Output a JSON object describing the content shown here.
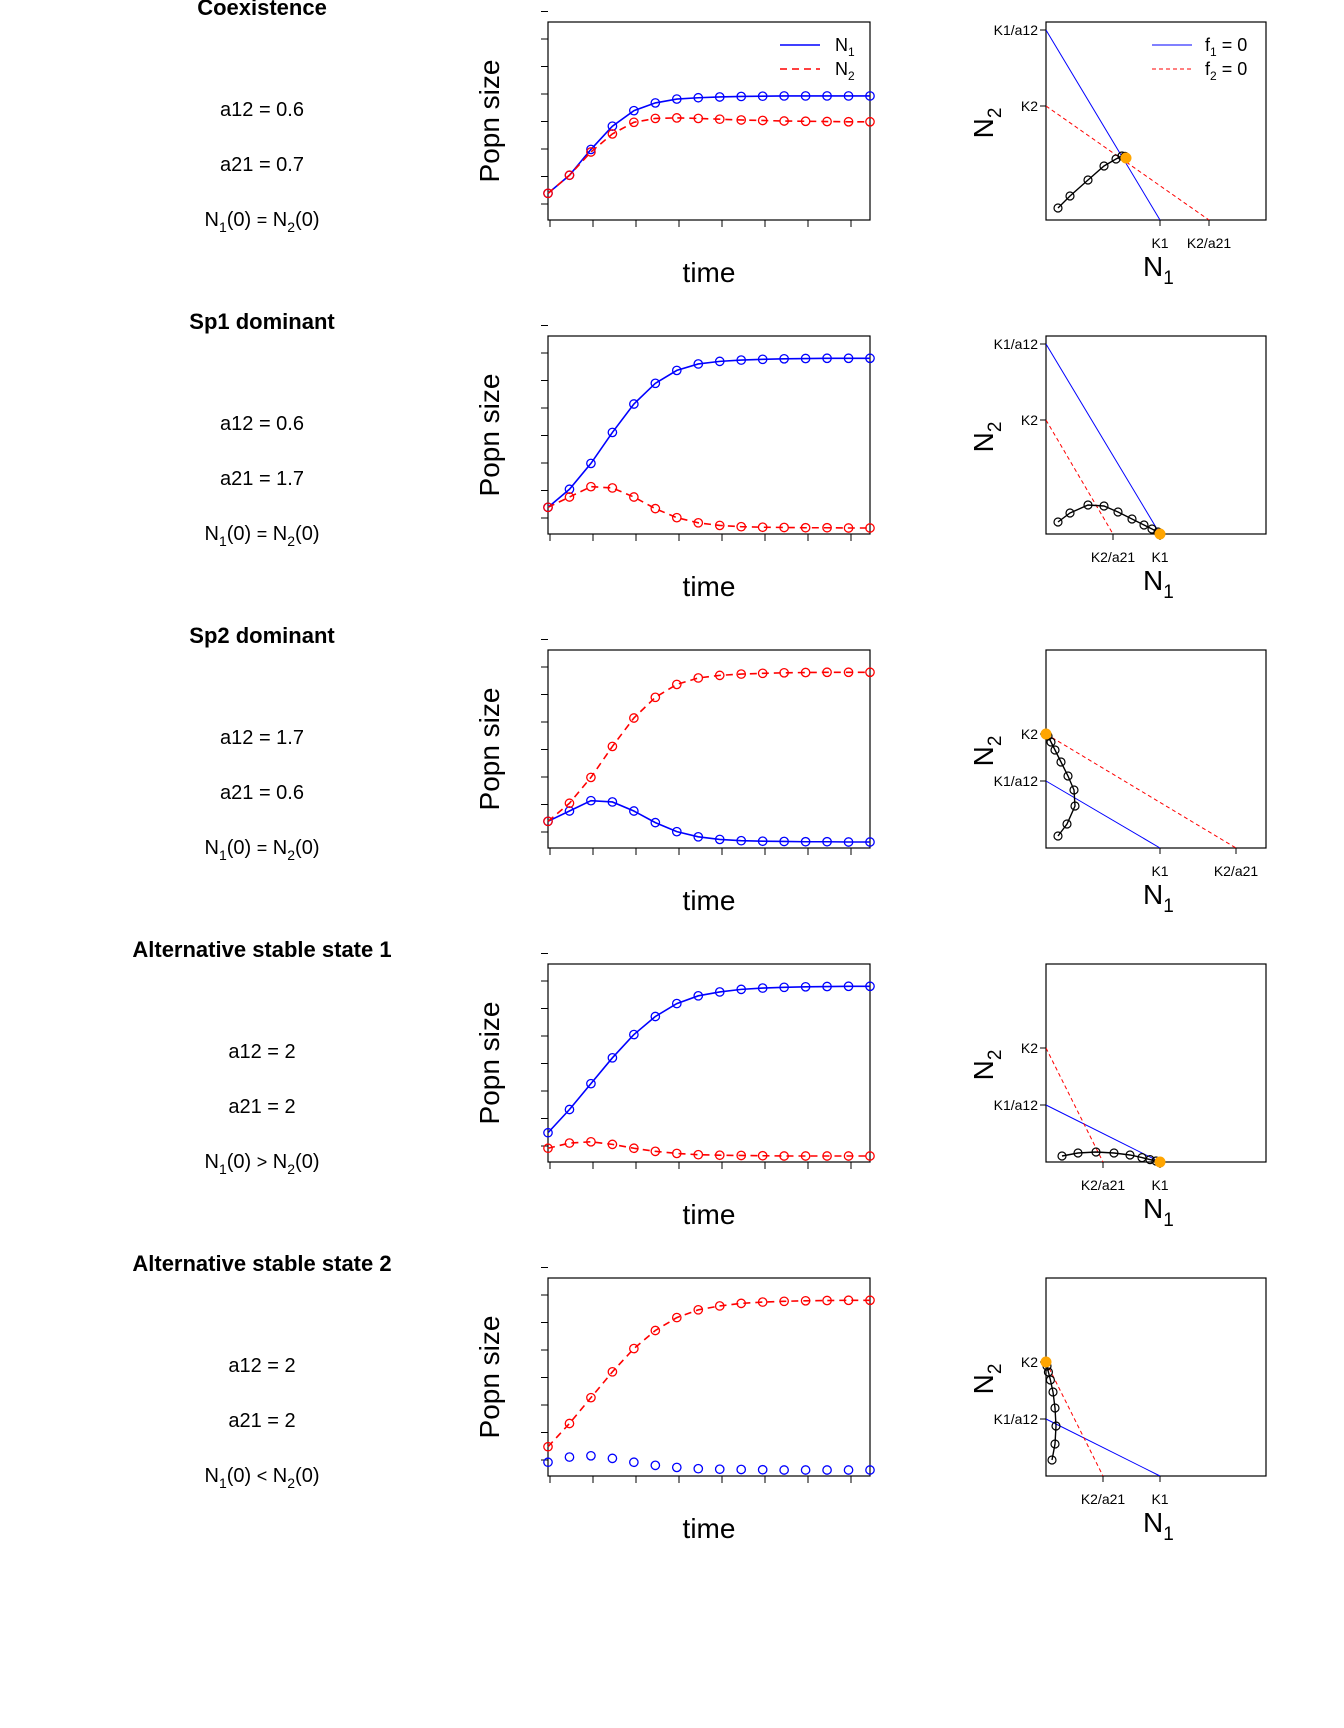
{
  "figure": {
    "type": "line",
    "panels": [
      {
        "title": "Coexistence",
        "params": [
          "a12 = 0.6",
          "a21 = 0.7"
        ],
        "n0_relation": "=",
        "time_series": {
          "xlabel": "time",
          "ylabel": "Popn size",
          "N1": [
            0.08,
            0.15,
            0.25,
            0.34,
            0.4,
            0.43,
            0.445,
            0.45,
            0.453,
            0.455,
            0.456,
            0.457,
            0.457,
            0.457,
            0.457,
            0.457
          ],
          "N2": [
            0.08,
            0.15,
            0.24,
            0.31,
            0.355,
            0.37,
            0.372,
            0.37,
            0.367,
            0.364,
            0.362,
            0.36,
            0.359,
            0.358,
            0.357,
            0.357
          ]
        },
        "phase": {
          "xlabel": "N",
          "xsub": "1",
          "ylabel": "N",
          "ysub": "2",
          "xticks": [
            {
              "label": "K1",
              "value": 0.57
            },
            {
              "label": "K2/a21",
              "value": 0.815
            }
          ],
          "yticks": [
            {
              "label": "K1/a12",
              "value": 0.95
            },
            {
              "label": "K2",
              "value": 0.57
            }
          ],
          "f1": [
            [
              0,
              0.95
            ],
            [
              0.57,
              0
            ]
          ],
          "f2": [
            [
              0,
              0.57
            ],
            [
              0.815,
              0
            ]
          ],
          "trajectory": [
            [
              0.06,
              0.06
            ],
            [
              0.12,
              0.12
            ],
            [
              0.21,
              0.2
            ],
            [
              0.29,
              0.27
            ],
            [
              0.35,
              0.305
            ],
            [
              0.38,
              0.32
            ],
            [
              0.395,
              0.318
            ],
            [
              0.4,
              0.31
            ]
          ],
          "equilibrium": [
            0.4,
            0.31
          ],
          "legend": [
            {
              "main": "f",
              "sub": "1",
              "suffix": " = 0"
            },
            {
              "main": "f",
              "sub": "2",
              "suffix": " = 0"
            }
          ]
        }
      },
      {
        "title": "Sp1 dominant",
        "params": [
          "a12 = 0.6",
          "a21 = 1.7"
        ],
        "n0_relation": "=",
        "time_series": {
          "xlabel": "time",
          "ylabel": "Popn size",
          "N1": [
            0.08,
            0.15,
            0.25,
            0.37,
            0.48,
            0.56,
            0.61,
            0.635,
            0.645,
            0.65,
            0.653,
            0.655,
            0.656,
            0.657,
            0.657,
            0.657
          ],
          "N2": [
            0.08,
            0.12,
            0.16,
            0.155,
            0.12,
            0.075,
            0.04,
            0.02,
            0.01,
            0.005,
            0.003,
            0.002,
            0.001,
            0.001,
            0.0,
            0.0
          ]
        },
        "phase": {
          "xlabel": "N",
          "xsub": "1",
          "ylabel": "N",
          "ysub": "2",
          "xticks": [
            {
              "label": "K2/a21",
              "value": 0.335
            },
            {
              "label": "K1",
              "value": 0.57
            }
          ],
          "yticks": [
            {
              "label": "K1/a12",
              "value": 0.95
            },
            {
              "label": "K2",
              "value": 0.57
            }
          ],
          "f1": [
            [
              0,
              0.95
            ],
            [
              0.57,
              0
            ]
          ],
          "f2": [
            [
              0,
              0.57
            ],
            [
              0.335,
              0
            ]
          ],
          "trajectory": [
            [
              0.06,
              0.06
            ],
            [
              0.12,
              0.105
            ],
            [
              0.21,
              0.145
            ],
            [
              0.29,
              0.14
            ],
            [
              0.36,
              0.11
            ],
            [
              0.43,
              0.075
            ],
            [
              0.49,
              0.045
            ],
            [
              0.53,
              0.025
            ],
            [
              0.56,
              0.01
            ],
            [
              0.57,
              0.0
            ]
          ],
          "equilibrium": [
            0.57,
            0.0
          ]
        }
      },
      {
        "title": "Sp2 dominant",
        "params": [
          "a12 = 1.7",
          "a21 = 0.6"
        ],
        "n0_relation": "=",
        "time_series": {
          "xlabel": "time",
          "ylabel": "Popn size",
          "N1": [
            0.08,
            0.12,
            0.16,
            0.155,
            0.12,
            0.075,
            0.04,
            0.02,
            0.01,
            0.005,
            0.003,
            0.002,
            0.001,
            0.001,
            0.0,
            0.0
          ],
          "N2": [
            0.08,
            0.15,
            0.25,
            0.37,
            0.48,
            0.56,
            0.61,
            0.635,
            0.645,
            0.65,
            0.653,
            0.655,
            0.656,
            0.657,
            0.657,
            0.657
          ]
        },
        "phase": {
          "xlabel": "N",
          "xsub": "1",
          "ylabel": "N",
          "ysub": "2",
          "xticks": [
            {
              "label": "K1",
              "value": 0.57
            },
            {
              "label": "K2/a21",
              "value": 0.95
            }
          ],
          "yticks": [
            {
              "label": "K2",
              "value": 0.57
            },
            {
              "label": "K1/a12",
              "value": 0.335
            }
          ],
          "f1": [
            [
              0,
              0.335
            ],
            [
              0.57,
              0
            ]
          ],
          "f2": [
            [
              0,
              0.57
            ],
            [
              0.95,
              0
            ]
          ],
          "trajectory": [
            [
              0.06,
              0.06
            ],
            [
              0.105,
              0.12
            ],
            [
              0.145,
              0.21
            ],
            [
              0.14,
              0.29
            ],
            [
              0.11,
              0.36
            ],
            [
              0.075,
              0.43
            ],
            [
              0.045,
              0.49
            ],
            [
              0.025,
              0.53
            ],
            [
              0.01,
              0.56
            ],
            [
              0.0,
              0.57
            ]
          ],
          "equilibrium": [
            0.0,
            0.57
          ]
        }
      },
      {
        "title": "Alternative stable state 1",
        "params": [
          "a12 = 2",
          "a21 = 2"
        ],
        "n0_relation": ">",
        "time_series": {
          "xlabel": "time",
          "ylabel": "Popn size",
          "N1": [
            0.09,
            0.18,
            0.28,
            0.38,
            0.47,
            0.54,
            0.59,
            0.62,
            0.635,
            0.645,
            0.65,
            0.653,
            0.655,
            0.656,
            0.657,
            0.657
          ],
          "N2": [
            0.03,
            0.05,
            0.055,
            0.045,
            0.03,
            0.018,
            0.01,
            0.005,
            0.003,
            0.002,
            0.001,
            0.0,
            0.0,
            0.0,
            0.0,
            0.0
          ]
        },
        "phase": {
          "xlabel": "N",
          "xsub": "1",
          "ylabel": "N",
          "ysub": "2",
          "xticks": [
            {
              "label": "K2/a21",
              "value": 0.285
            },
            {
              "label": "K1",
              "value": 0.57
            }
          ],
          "yticks": [
            {
              "label": "K2",
              "value": 0.57
            },
            {
              "label": "K1/a12",
              "value": 0.285
            }
          ],
          "f1": [
            [
              0,
              0.285
            ],
            [
              0.57,
              0
            ]
          ],
          "f2": [
            [
              0,
              0.57
            ],
            [
              0.285,
              0
            ]
          ],
          "trajectory": [
            [
              0.08,
              0.03
            ],
            [
              0.16,
              0.045
            ],
            [
              0.25,
              0.05
            ],
            [
              0.34,
              0.045
            ],
            [
              0.42,
              0.035
            ],
            [
              0.48,
              0.022
            ],
            [
              0.52,
              0.012
            ],
            [
              0.55,
              0.005
            ],
            [
              0.57,
              0.0
            ]
          ],
          "equilibrium": [
            0.57,
            0.0
          ]
        }
      },
      {
        "title": "Alternative stable state 2",
        "params": [
          "a12 = 2",
          "a21 = 2"
        ],
        "n0_relation": "<",
        "time_series": {
          "xlabel": "time",
          "ylabel": "Popn size",
          "N1": [
            0.03,
            0.05,
            0.055,
            0.045,
            0.03,
            0.018,
            0.01,
            0.005,
            0.003,
            0.002,
            0.001,
            0.0,
            0.0,
            0.0,
            0.0,
            0.0
          ],
          "N2": [
            0.09,
            0.18,
            0.28,
            0.38,
            0.47,
            0.54,
            0.59,
            0.62,
            0.635,
            0.645,
            0.65,
            0.653,
            0.655,
            0.656,
            0.657,
            0.657
          ]
        },
        "phase": {
          "xlabel": "N",
          "xsub": "1",
          "ylabel": "N",
          "ysub": "2",
          "xticks": [
            {
              "label": "K2/a21",
              "value": 0.285
            },
            {
              "label": "K1",
              "value": 0.57
            }
          ],
          "yticks": [
            {
              "label": "K2",
              "value": 0.57
            },
            {
              "label": "K1/a12",
              "value": 0.285
            }
          ],
          "f1": [
            [
              0,
              0.285
            ],
            [
              0.57,
              0
            ]
          ],
          "f2": [
            [
              0,
              0.57
            ],
            [
              0.285,
              0
            ]
          ],
          "trajectory": [
            [
              0.03,
              0.08
            ],
            [
              0.045,
              0.16
            ],
            [
              0.05,
              0.25
            ],
            [
              0.045,
              0.34
            ],
            [
              0.035,
              0.42
            ],
            [
              0.022,
              0.48
            ],
            [
              0.012,
              0.52
            ],
            [
              0.005,
              0.55
            ],
            [
              0.0,
              0.57
            ]
          ],
          "equilibrium": [
            0.0,
            0.57
          ]
        }
      }
    ],
    "ts_legend": [
      {
        "main": "N",
        "sub": "1"
      },
      {
        "main": "N",
        "sub": "2"
      }
    ],
    "colors": {
      "N1": "#0000ff",
      "N2": "#ff0000",
      "trajectory": "#000000",
      "equilibrium": "#ffa500"
    }
  }
}
